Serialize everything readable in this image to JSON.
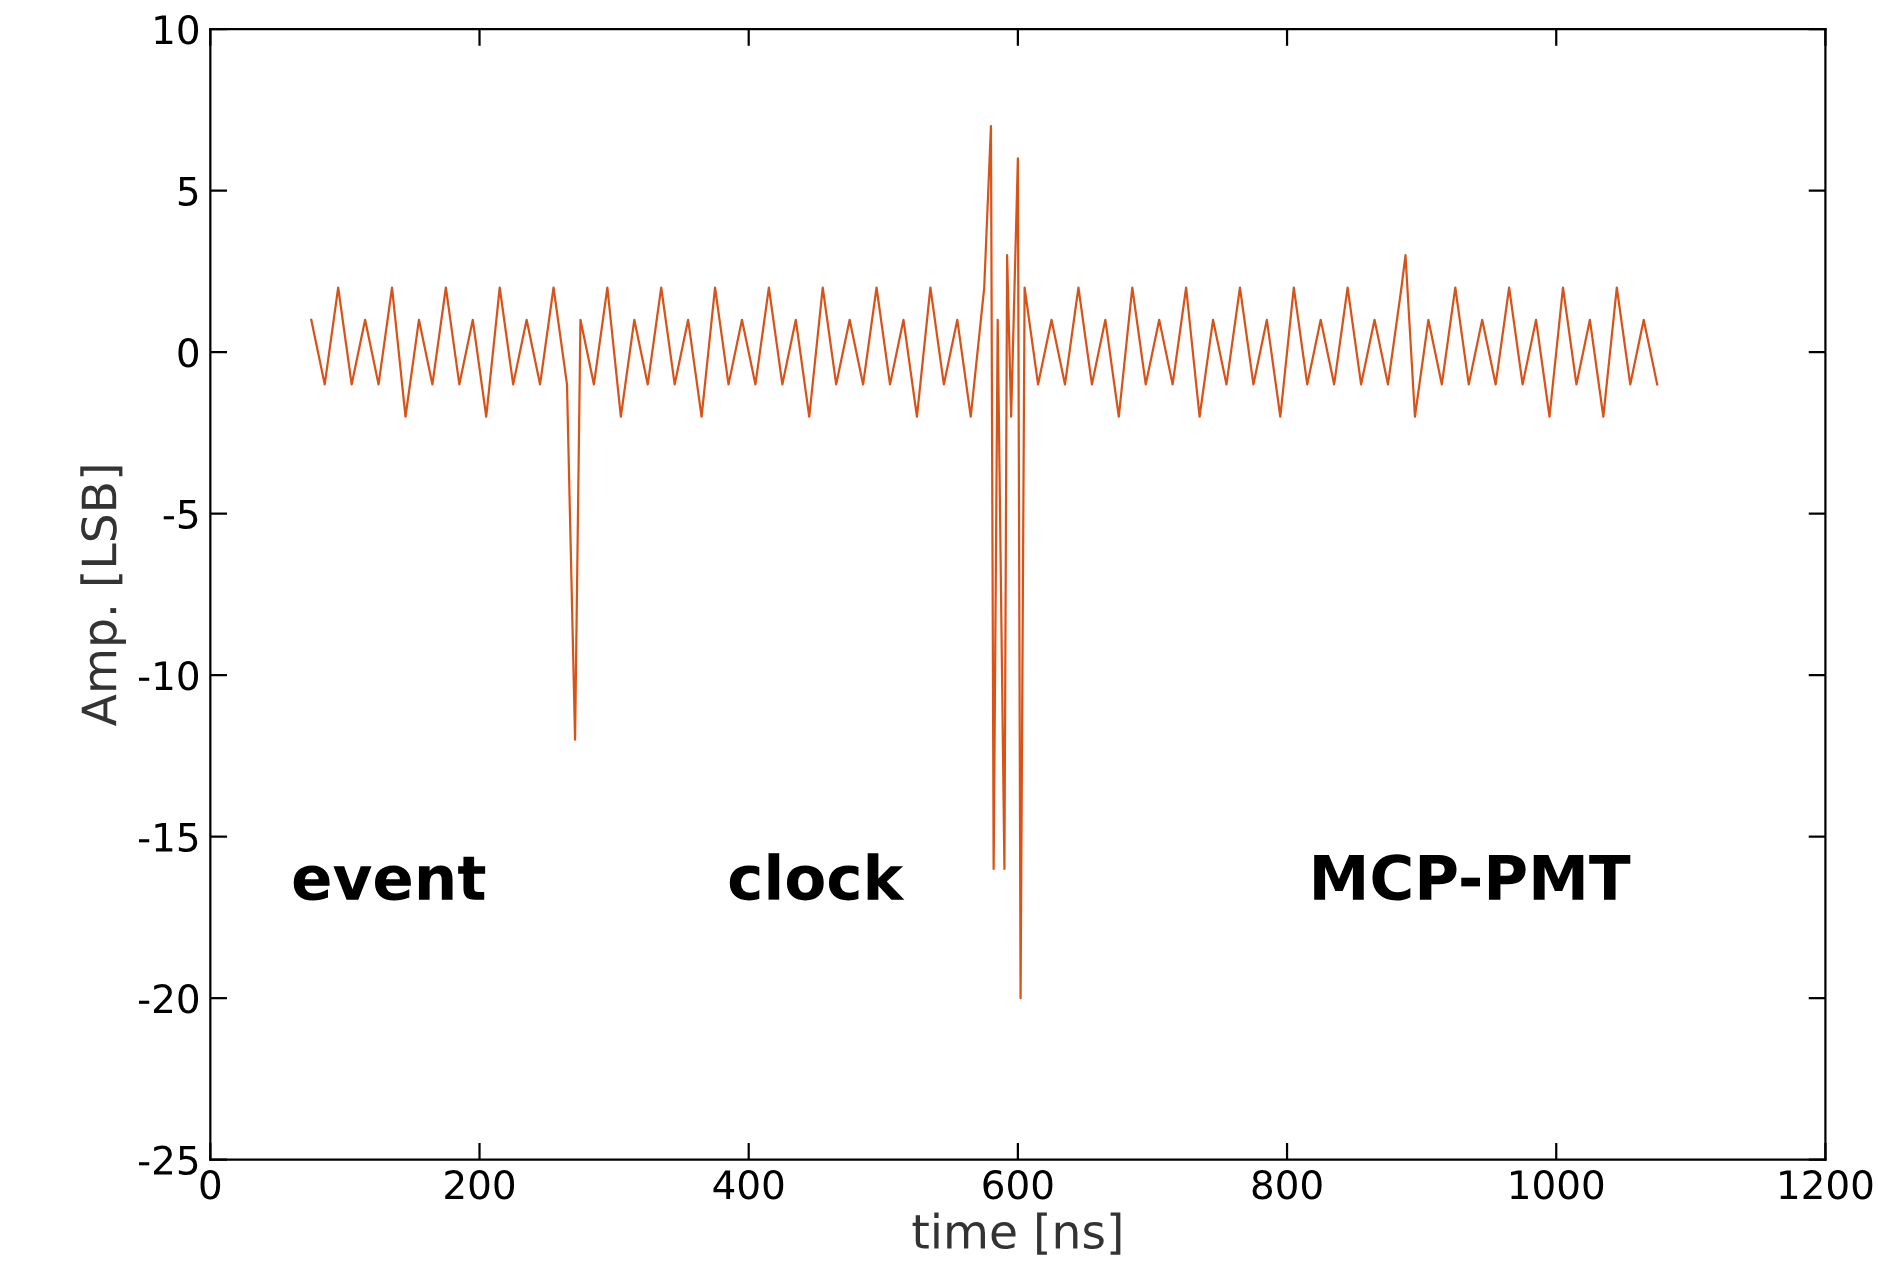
{
  "chart_data": {
    "type": "line",
    "xlabel": "time [ns]",
    "ylabel": "Amp. [LSB]",
    "annotations": [
      "event",
      "clock",
      "MCP-PMT"
    ],
    "x": [
      75,
      85,
      95,
      105,
      115,
      125,
      135,
      145,
      155,
      165,
      175,
      185,
      195,
      205,
      215,
      225,
      235,
      245,
      255,
      265,
      271,
      275,
      285,
      295,
      305,
      315,
      325,
      335,
      345,
      355,
      365,
      375,
      385,
      395,
      405,
      415,
      425,
      435,
      445,
      455,
      465,
      475,
      485,
      495,
      505,
      515,
      525,
      535,
      545,
      555,
      565,
      575,
      580,
      582,
      585,
      590,
      592,
      595,
      600,
      602,
      605,
      615,
      625,
      635,
      645,
      655,
      665,
      675,
      685,
      695,
      705,
      715,
      725,
      735,
      745,
      755,
      765,
      775,
      785,
      795,
      805,
      815,
      825,
      835,
      845,
      855,
      865,
      875,
      885,
      888,
      895,
      905,
      915,
      925,
      935,
      945,
      955,
      965,
      975,
      985,
      995,
      1005,
      1015,
      1025,
      1035,
      1045,
      1055,
      1065,
      1075
    ],
    "series": [
      {
        "color": "#d95319",
        "values": [
          1,
          -1,
          2,
          -1,
          1,
          -1,
          2,
          -2,
          1,
          -1,
          2,
          -1,
          1,
          -2,
          2,
          -1,
          1,
          -1,
          2,
          -1,
          -12,
          1,
          -1,
          2,
          -2,
          1,
          -1,
          2,
          -1,
          1,
          -2,
          2,
          -1,
          1,
          -1,
          2,
          -1,
          1,
          -2,
          2,
          -1,
          1,
          -1,
          2,
          -1,
          1,
          -2,
          2,
          -1,
          1,
          -2,
          2,
          7,
          -16,
          1,
          -16,
          3,
          -2,
          6,
          -20,
          2,
          -1,
          1,
          -1,
          2,
          -1,
          1,
          -2,
          2,
          -1,
          1,
          -1,
          2,
          -2,
          1,
          -1,
          2,
          -1,
          1,
          -2,
          2,
          -1,
          1,
          -1,
          2,
          -1,
          1,
          -1,
          2,
          3,
          -2,
          1,
          -1,
          2,
          -1,
          1,
          -1,
          2,
          -1,
          1,
          -2,
          2,
          -1,
          1,
          -2,
          2,
          -1,
          1,
          -1
        ]
      }
    ],
    "xlim": [
      0,
      1200
    ],
    "xticks": [
      0,
      200,
      400,
      600,
      800,
      1000,
      1200
    ],
    "ylim": [
      -25,
      10
    ],
    "yticks": [
      -25,
      -20,
      -15,
      -10,
      -5,
      0,
      5,
      10
    ],
    "grid": false,
    "legend": false
  }
}
